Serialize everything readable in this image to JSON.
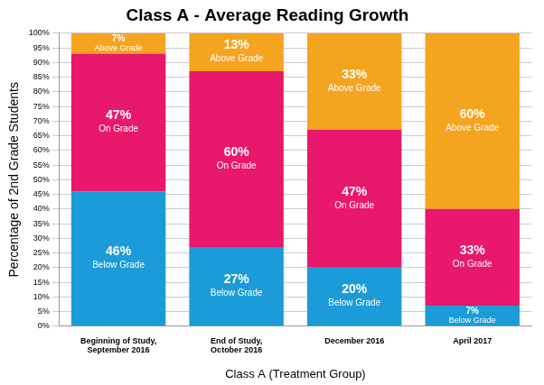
{
  "chart_data": {
    "type": "bar",
    "title": "Class A - Average Reading Growth",
    "x_label": "Class A (Treatment Group)",
    "y_label": "Percentage of 2nd Grade Students",
    "categories": [
      "Beginning of Study, September 2016",
      "End of Study, October 2016",
      "December 2016",
      "April 2017"
    ],
    "series": [
      {
        "name": "Below Grade",
        "color": "#1b9bd7",
        "values": [
          46,
          27,
          20,
          7
        ],
        "value_labels": [
          "46%",
          "27%",
          "20%",
          "7%"
        ]
      },
      {
        "name": "On Grade",
        "color": "#e8186c",
        "values": [
          47,
          60,
          47,
          33
        ],
        "value_labels": [
          "47%",
          "60%",
          "47%",
          "33%"
        ]
      },
      {
        "name": "Above Grade",
        "color": "#f5a420",
        "values": [
          7,
          13,
          33,
          60
        ],
        "value_labels": [
          "7%",
          "13%",
          "33%",
          "60%"
        ]
      }
    ],
    "ylim": [
      0,
      100
    ],
    "yticks": [
      {
        "value": 0,
        "label": "0%"
      },
      {
        "value": 5,
        "label": "5%"
      },
      {
        "value": 10,
        "label": "10%"
      },
      {
        "value": 15,
        "label": "15%"
      },
      {
        "value": 20,
        "label": "20%"
      },
      {
        "value": 25,
        "label": "25%"
      },
      {
        "value": 30,
        "label": "30%"
      },
      {
        "value": 35,
        "label": "35%"
      },
      {
        "value": 40,
        "label": "40%"
      },
      {
        "value": 45,
        "label": "45%"
      },
      {
        "value": 50,
        "label": "50%"
      },
      {
        "value": 55,
        "label": "55%"
      },
      {
        "value": 60,
        "label": "60%"
      },
      {
        "value": 65,
        "label": "65%"
      },
      {
        "value": 70,
        "label": "70%"
      },
      {
        "value": 75,
        "label": "75%"
      },
      {
        "value": 80,
        "label": "80%"
      },
      {
        "value": 85,
        "label": "85%"
      },
      {
        "value": 90,
        "label": "90%"
      },
      {
        "value": 95,
        "label": "95%"
      },
      {
        "value": 100,
        "label": "100%"
      }
    ],
    "grid": true,
    "stacked": true,
    "data_labels": true
  }
}
